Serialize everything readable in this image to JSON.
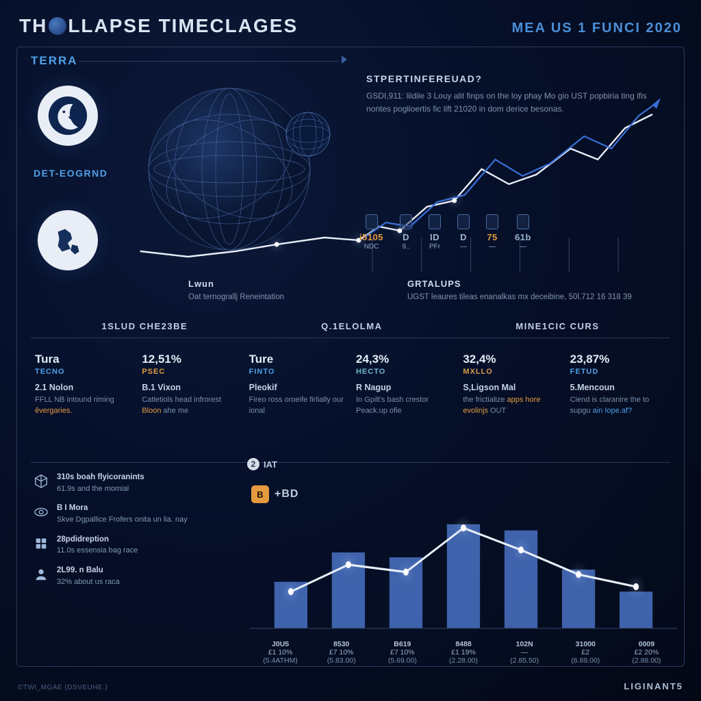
{
  "header": {
    "title_a": "TH",
    "title_b": "LLAPSE TIMECLAGES",
    "subtitle": "MEA US 1 FUNCI  2020"
  },
  "terra_label": "TERRA",
  "det_label": "DET-EOGRND",
  "right_block": {
    "heading": "STPERTINFEREUAD?",
    "body": "GSDI,911: lildile 3 Louy alit finps on the loy phay Mo gio UST popbiria ting ifis nontes poglioertis fic lift 21020 in dom derice besonas."
  },
  "ticks": [
    {
      "top": "i5105",
      "bot": "NDC",
      "color": "#e69a3f"
    },
    {
      "top": "D",
      "bot": "9..",
      "color": "#9ab2d0"
    },
    {
      "top": "ID",
      "bot": "PFr",
      "color": "#9ab2d0"
    },
    {
      "top": "D",
      "bot": "—",
      "color": "#9ab2d0"
    },
    {
      "top": "75",
      "bot": "—",
      "color": "#e69a3f"
    },
    {
      "top": "61b",
      "bot": "—",
      "color": "#9ab2d0"
    }
  ],
  "lwun": {
    "head": "Lwun",
    "body": "Oat ternograllj Reneintation"
  },
  "grtal": {
    "head": "GRTALUPS",
    "body": "UGST leaures tileas enanalkas mx deceibine, 50l.712 16 318 39"
  },
  "sections": [
    "1SLUD CHE23BE",
    "Q.1ELOLMA",
    "MINE1CIC CURS"
  ],
  "cards": [
    {
      "title": "Tura",
      "tag": "TECNO",
      "tag_color": "accent-blue",
      "sub": "2.1 Nolon",
      "body": "FFLL NB intound riming",
      "hl": "êvergaries.",
      "hl_class": "hl-o"
    },
    {
      "title": "12,51%",
      "tag": "PSEC",
      "tag_color": "accent-orange",
      "sub": "B.1 Vixon",
      "body": "Catletiols head infrorest",
      "hl": "Bloon",
      "body2": "ahe me",
      "hl_class": "hl-o"
    },
    {
      "title": "Ture",
      "tag": "FINTO",
      "tag_color": "accent-blue",
      "sub": "Pleokif",
      "body": "Fireo ross oroeife firlially our ional",
      "hl": "",
      "hl_class": ""
    },
    {
      "title": "24,3%",
      "tag": "HECTO",
      "tag_color": "accent-teal",
      "sub": "R Nagup",
      "body": "In Gpilt's bash crestor Peack.up ofie",
      "hl": "",
      "hl_class": ""
    },
    {
      "title": "32,4%",
      "tag": "MXLLO",
      "tag_color": "accent-ob",
      "sub": "S,Ligson Mal",
      "body": "the frictialize",
      "hl": "apps hore evolinjs",
      "body2": "OUT",
      "hl_class": "hl-o"
    },
    {
      "title": "23,87%",
      "tag": "FETUD",
      "tag_color": "accent-blue",
      "sub": "5.Mencoun",
      "body": "Ciend is claranire the to supgu",
      "hl": "ain Iope.af?",
      "hl_class": "hl-b"
    }
  ],
  "notes": [
    {
      "icon": "cube",
      "bold": "310s boah flyicoranints",
      "text": "61.9s and the momial"
    },
    {
      "icon": "eye",
      "bold": "B I Mora",
      "text": "Skve Dgpallice Frofers onita un lia. nay"
    },
    {
      "icon": "stack",
      "bold": "28pdidreption",
      "text": "11.0s essensia bag race"
    },
    {
      "icon": "avatar",
      "bold": "2L99. n Balu",
      "text": "32% about us raca"
    }
  ],
  "iat_label": "IAT",
  "bd_label": "+BD",
  "bar_chart": {
    "type": "bar+line",
    "bar_color": "#4a72c4",
    "line_color": "#e8eef7",
    "bg": "transparent",
    "max": 100,
    "bars": [
      38,
      62,
      58,
      85,
      80,
      48,
      30
    ],
    "line": [
      30,
      52,
      46,
      82,
      64,
      44,
      34
    ],
    "labels": [
      {
        "l1": "J0U5",
        "l2": "£1 10%",
        "l3": "(5.4ATHM)"
      },
      {
        "l1": "8530",
        "l2": "£7 10%",
        "l3": "(5.83.00)"
      },
      {
        "l1": "B619",
        "l2": "£7 10%",
        "l3": "(5.69.00)"
      },
      {
        "l1": "8488",
        "l2": "£1 19%",
        "l3": "(2.28.00)"
      },
      {
        "l1": "102N",
        "l2": "—",
        "l3": "(2.85.50)"
      },
      {
        "l1": "31000",
        "l2": "£2",
        "l3": "(6.89.00)"
      },
      {
        "l1": "0009",
        "l2": "£2 20%",
        "l3": "(2.88.00)"
      }
    ]
  },
  "hero_line": {
    "color_main": "#e8eef7",
    "color_blue": "#3a70d8",
    "points_main": [
      [
        160,
        260
      ],
      [
        230,
        268
      ],
      [
        300,
        260
      ],
      [
        360,
        250
      ],
      [
        430,
        240
      ],
      [
        480,
        244
      ],
      [
        510,
        224
      ],
      [
        540,
        230
      ],
      [
        580,
        195
      ],
      [
        620,
        186
      ],
      [
        660,
        140
      ],
      [
        700,
        162
      ],
      [
        740,
        148
      ],
      [
        790,
        110
      ],
      [
        830,
        126
      ],
      [
        870,
        80
      ],
      [
        910,
        60
      ]
    ],
    "points_blue": [
      [
        488,
        240
      ],
      [
        520,
        218
      ],
      [
        555,
        224
      ],
      [
        595,
        188
      ],
      [
        635,
        178
      ],
      [
        680,
        126
      ],
      [
        720,
        150
      ],
      [
        760,
        132
      ],
      [
        810,
        92
      ],
      [
        850,
        110
      ],
      [
        890,
        62
      ],
      [
        918,
        42
      ]
    ]
  },
  "footer_left": "©TWI_MGAE  (DSVEUHE.)",
  "footer_right": "LIGINANT5",
  "colors": {
    "panel_border": "#2a3a5c",
    "accent_blue": "#4fa0e8",
    "accent_orange": "#e69a3f"
  }
}
